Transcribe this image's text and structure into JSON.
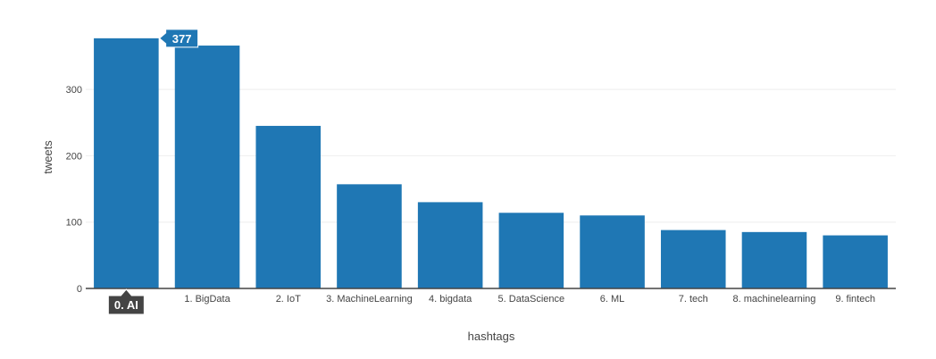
{
  "chart_data": {
    "type": "bar",
    "title": "",
    "xlabel": "hashtags",
    "ylabel": "tweets",
    "categories": [
      "0. AI",
      "1. BigData",
      "2. IoT",
      "3. MachineLearning",
      "4. bigdata",
      "5. DataScience",
      "6. ML",
      "7. tech",
      "8. machinelearning",
      "9. fintech"
    ],
    "values": [
      377,
      366,
      245,
      157,
      130,
      114,
      110,
      88,
      85,
      80
    ],
    "ylim": [
      0,
      397
    ],
    "yticks": [
      0,
      100,
      200,
      300
    ],
    "grid": true,
    "bar_color": "#1f77b4",
    "hover": {
      "category_index": 0,
      "value_label": "377",
      "category_label": "0. AI"
    }
  },
  "colors": {
    "bar": "#1f77b4",
    "grid": "#eeeeee",
    "axis_line": "#444444",
    "hover_x_bg": "#444444"
  }
}
